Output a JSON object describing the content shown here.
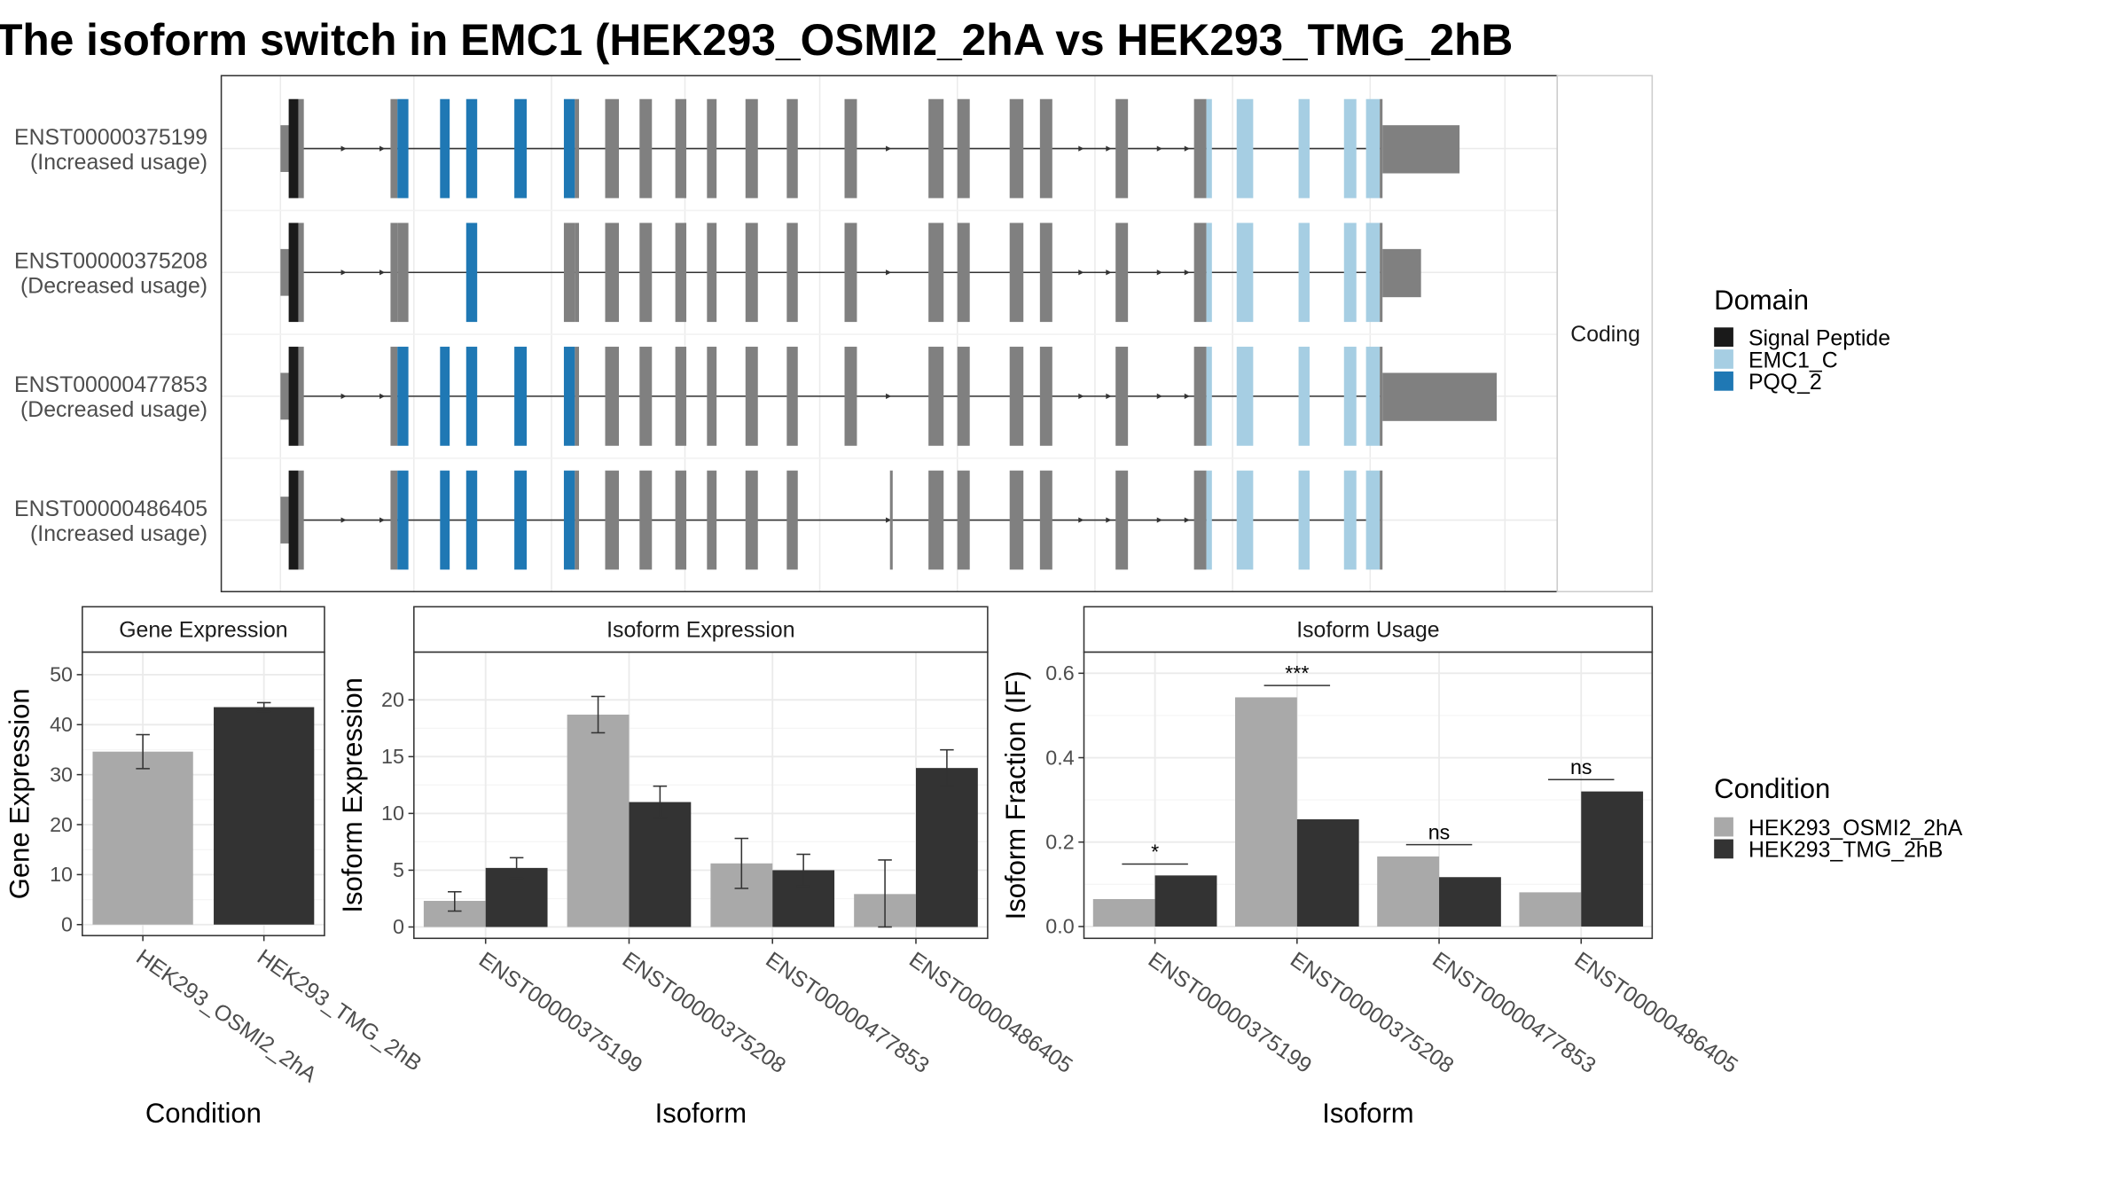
{
  "title": "The isoform switch in EMC1 (HEK293_OSMI2_2hA vs HEK293_TMG_2hB",
  "colors": {
    "signal_peptide": "#1a1a1a",
    "emc1_c": "#a6cee3",
    "pqq_2": "#1f78b4",
    "exon": "#808080",
    "condition_a": "#a9a9a9",
    "condition_b": "#333333",
    "panel_border": "#333333",
    "strip_fill": "#ffffff",
    "grid": "#ebebeb",
    "axis_text": "#4d4d4d"
  },
  "legends": {
    "domain": {
      "title": "Domain",
      "items": [
        {
          "label": "Signal Peptide",
          "color_key": "signal_peptide"
        },
        {
          "label": "EMC1_C",
          "color_key": "emc1_c"
        },
        {
          "label": "PQQ_2",
          "color_key": "pqq_2"
        }
      ]
    },
    "condition": {
      "title": "Condition",
      "items": [
        {
          "label": "HEK293_OSMI2_2hA",
          "color_key": "condition_a"
        },
        {
          "label": "HEK293_TMG_2hB",
          "color_key": "condition_b"
        }
      ]
    }
  },
  "structure_plot": {
    "strip_label": "Coding",
    "transcripts": [
      {
        "id": "ENST00000375199",
        "note": "(Increased usage)",
        "utr3_length": 0.56
      },
      {
        "id": "ENST00000375208",
        "note": "(Decreased usage)",
        "utr3_length": 0.28
      },
      {
        "id": "ENST00000477853",
        "note": "(Decreased usage)",
        "utr3_length": 0.83
      },
      {
        "id": "ENST00000486405",
        "note": "(Increased usage)",
        "utr3_length": 0.0
      }
    ]
  },
  "chart_data": [
    {
      "type": "bar",
      "title": "Gene Expression",
      "xlabel": "Condition",
      "ylabel": "Gene Expression",
      "categories": [
        "HEK293_OSMI2_2hA",
        "HEK293_TMG_2hB"
      ],
      "series": [
        {
          "values": [
            34.6,
            43.5
          ],
          "error_low": [
            31.2,
            42.6
          ],
          "error_high": [
            38.0,
            44.4
          ]
        }
      ],
      "ylim": [
        -2.2,
        54.5
      ],
      "yticks": [
        0,
        10,
        20,
        30,
        40,
        50
      ],
      "grid": true
    },
    {
      "type": "bar",
      "title": "Isoform Expression",
      "xlabel": "Isoform",
      "ylabel": "Isoform Expression",
      "categories": [
        "ENST00000375199",
        "ENST00000375208",
        "ENST00000477853",
        "ENST00000486405"
      ],
      "series": [
        {
          "name": "HEK293_OSMI2_2hA",
          "values": [
            2.3,
            18.7,
            5.6,
            2.9
          ],
          "error_low": [
            1.4,
            17.1,
            3.4,
            0.0
          ],
          "error_high": [
            3.1,
            20.3,
            7.8,
            5.9
          ]
        },
        {
          "name": "HEK293_TMG_2hB",
          "values": [
            5.2,
            11.0,
            5.0,
            14.0
          ],
          "error_low": [
            4.3,
            9.6,
            3.6,
            12.4
          ],
          "error_high": [
            6.1,
            12.4,
            6.4,
            15.6
          ]
        }
      ],
      "ylim": [
        -1.0,
        24.2
      ],
      "yticks": [
        0,
        5,
        10,
        15,
        20
      ],
      "grid": true
    },
    {
      "type": "bar",
      "title": "Isoform Usage",
      "xlabel": "Isoform",
      "ylabel": "Isoform Fraction (IF)",
      "categories": [
        "ENST00000375199",
        "ENST00000375208",
        "ENST00000477853",
        "ENST00000486405"
      ],
      "series": [
        {
          "name": "HEK293_OSMI2_2hA",
          "values": [
            0.065,
            0.543,
            0.166,
            0.081
          ]
        },
        {
          "name": "HEK293_TMG_2hB",
          "values": [
            0.121,
            0.254,
            0.117,
            0.32
          ]
        }
      ],
      "annotations": [
        {
          "category": "ENST00000375199",
          "label": "*",
          "y": 0.148
        },
        {
          "category": "ENST00000375208",
          "label": "***",
          "y": 0.571
        },
        {
          "category": "ENST00000477853",
          "label": "ns",
          "y": 0.194
        },
        {
          "category": "ENST00000486405",
          "label": "ns",
          "y": 0.348
        }
      ],
      "ylim": [
        -0.028,
        0.65
      ],
      "yticks": [
        0.0,
        0.2,
        0.4,
        0.6
      ],
      "ytick_labels": [
        "0.0",
        "0.2",
        "0.4",
        "0.6"
      ],
      "grid": true
    }
  ]
}
